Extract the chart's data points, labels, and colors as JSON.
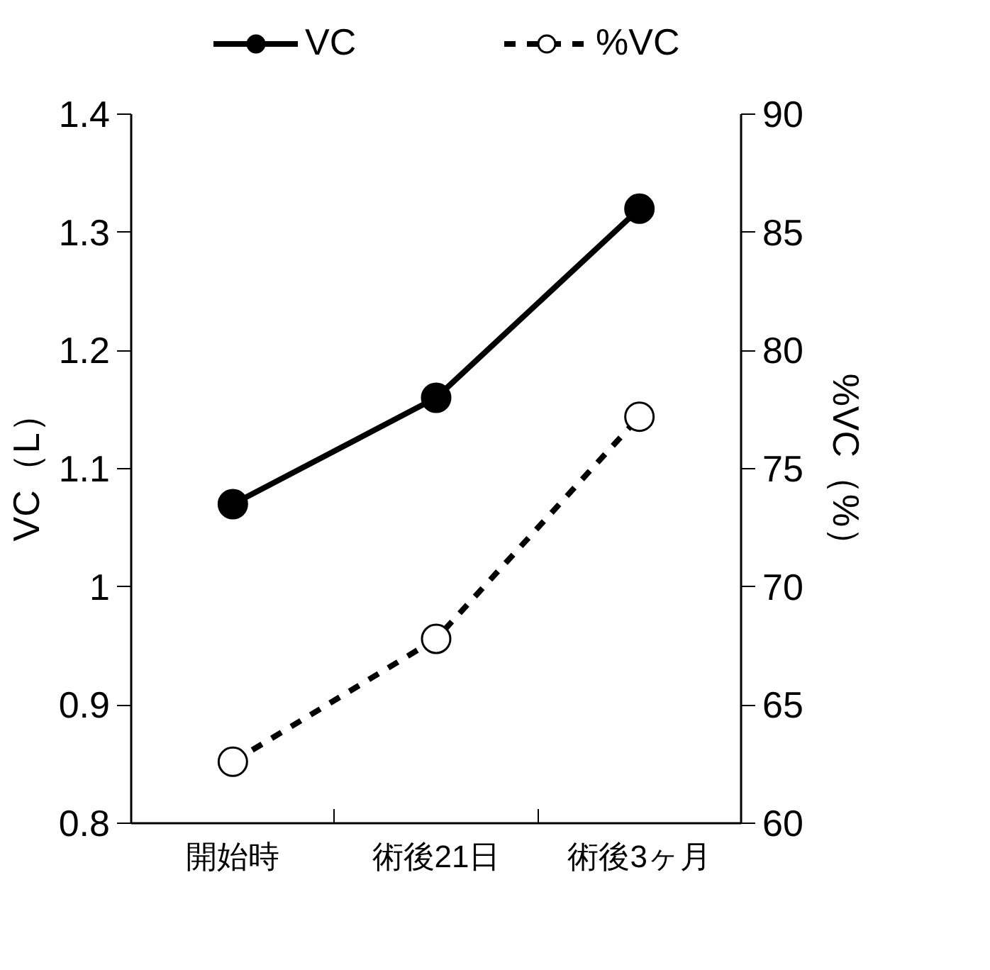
{
  "chart_data": {
    "type": "line",
    "categories": [
      "開始時",
      "術後21日",
      "術後3ヶ月"
    ],
    "ylabel": "VC（L）",
    "y2label": "%VC（%）",
    "ylim": [
      0.8,
      1.4
    ],
    "yticks": [
      0.8,
      0.9,
      1,
      1.1,
      1.2,
      1.3,
      1.4
    ],
    "y2lim": [
      60,
      90
    ],
    "y2ticks": [
      60,
      65,
      70,
      75,
      80,
      85,
      90
    ],
    "legend": "top",
    "grid": false,
    "series": [
      {
        "name": "VC",
        "color": "#000000",
        "values": [
          1.07,
          1.16,
          1.32
        ],
        "marker": "circle",
        "line_style": "solid"
      },
      {
        "name": "%VC",
        "color": "#000000",
        "values": [
          62.6,
          67.8,
          77.2
        ],
        "axis": "y2",
        "marker": "circle",
        "line_style": "dashed"
      }
    ]
  }
}
